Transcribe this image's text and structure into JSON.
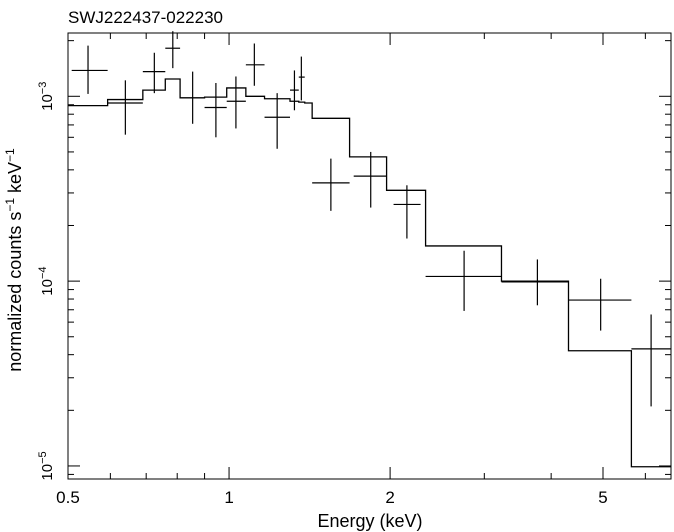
{
  "chart_data": {
    "type": "scatter",
    "title": "SWJ222437-022230",
    "xlabel": "Energy (keV)",
    "ylabel_base": "normalized counts s",
    "ylabel_mid": " keV",
    "ylabel_sup": "−1",
    "x_scale": "log",
    "y_scale": "log",
    "xlim": [
      0.5,
      6.7
    ],
    "ylim": [
      8.5e-06,
      0.0022
    ],
    "x_ticks": [
      {
        "value": 0.5,
        "label": "0.5"
      },
      {
        "value": 1,
        "label": "1"
      },
      {
        "value": 2,
        "label": "2"
      },
      {
        "value": 5,
        "label": "5"
      }
    ],
    "y_ticks": [
      {
        "value": 1e-05,
        "base": "10",
        "exp": "−5"
      },
      {
        "value": 0.0001,
        "base": "10",
        "exp": "−4"
      },
      {
        "value": 0.001,
        "base": "10",
        "exp": "−3"
      }
    ],
    "grid": false,
    "series": [
      {
        "kind": "data_crosses",
        "points": [
          {
            "x": 0.545,
            "xlo": 0.508,
            "xhi": 0.593,
            "y": 0.00138,
            "ylo": 0.00103,
            "yhi": 0.00188
          },
          {
            "x": 0.64,
            "xlo": 0.593,
            "xhi": 0.69,
            "y": 0.00092,
            "ylo": 0.00062,
            "yhi": 0.00122
          },
          {
            "x": 0.725,
            "xlo": 0.69,
            "xhi": 0.76,
            "y": 0.00136,
            "ylo": 0.00104,
            "yhi": 0.00172
          },
          {
            "x": 0.785,
            "xlo": 0.76,
            "xhi": 0.81,
            "y": 0.00182,
            "ylo": 0.00142,
            "yhi": 0.00225
          },
          {
            "x": 0.855,
            "xlo": 0.81,
            "xhi": 0.9,
            "y": 0.00098,
            "ylo": 0.00071,
            "yhi": 0.00136
          },
          {
            "x": 0.945,
            "xlo": 0.9,
            "xhi": 0.99,
            "y": 0.00087,
            "ylo": 0.0006,
            "yhi": 0.00118
          },
          {
            "x": 1.03,
            "xlo": 0.99,
            "xhi": 1.075,
            "y": 0.00094,
            "ylo": 0.00067,
            "yhi": 0.00128
          },
          {
            "x": 1.115,
            "xlo": 1.075,
            "xhi": 1.165,
            "y": 0.00148,
            "ylo": 0.00114,
            "yhi": 0.00193
          },
          {
            "x": 1.23,
            "xlo": 1.165,
            "xhi": 1.3,
            "y": 0.00077,
            "ylo": 0.00052,
            "yhi": 0.00104
          },
          {
            "x": 1.325,
            "xlo": 1.3,
            "xhi": 1.35,
            "y": 0.00108,
            "ylo": 0.00084,
            "yhi": 0.00138
          },
          {
            "x": 1.365,
            "xlo": 1.35,
            "xhi": 1.385,
            "y": 0.00127,
            "ylo": 0.00095,
            "yhi": 0.00164
          },
          {
            "x": 1.55,
            "xlo": 1.43,
            "xhi": 1.68,
            "y": 0.00034,
            "ylo": 0.00024,
            "yhi": 0.00046
          },
          {
            "x": 1.84,
            "xlo": 1.71,
            "xhi": 1.97,
            "y": 0.00037,
            "ylo": 0.00025,
            "yhi": 0.0005
          },
          {
            "x": 2.15,
            "xlo": 2.03,
            "xhi": 2.28,
            "y": 0.00026,
            "ylo": 0.00017,
            "yhi": 0.00033
          },
          {
            "x": 2.75,
            "xlo": 2.33,
            "xhi": 3.23,
            "y": 0.000106,
            "ylo": 6.9e-05,
            "yhi": 0.000146
          },
          {
            "x": 3.77,
            "xlo": 3.23,
            "xhi": 4.31,
            "y": 9.9e-05,
            "ylo": 7.4e-05,
            "yhi": 0.000131
          },
          {
            "x": 4.95,
            "xlo": 4.31,
            "xhi": 5.65,
            "y": 7.9e-05,
            "ylo": 5.4e-05,
            "yhi": 0.000103
          },
          {
            "x": 6.15,
            "xlo": 5.65,
            "xhi": 6.7,
            "y": 4.3e-05,
            "ylo": 2.1e-05,
            "yhi": 6.6e-05
          }
        ]
      },
      {
        "kind": "model_step",
        "edges": [
          0.5,
          0.593,
          0.69,
          0.76,
          0.81,
          0.9,
          0.99,
          1.075,
          1.165,
          1.3,
          1.35,
          1.385,
          1.43,
          1.68,
          1.97,
          2.33,
          3.23,
          4.31,
          5.65,
          6.7
        ],
        "values": [
          0.00089,
          0.00096,
          0.00108,
          0.00124,
          0.00098,
          0.00099,
          0.00111,
          0.001,
          0.00097,
          0.00094,
          0.00093,
          0.00092,
          0.00076,
          0.00047,
          0.00031,
          0.000155,
          0.0001,
          4.2e-05,
          9.9e-06
        ]
      }
    ]
  }
}
